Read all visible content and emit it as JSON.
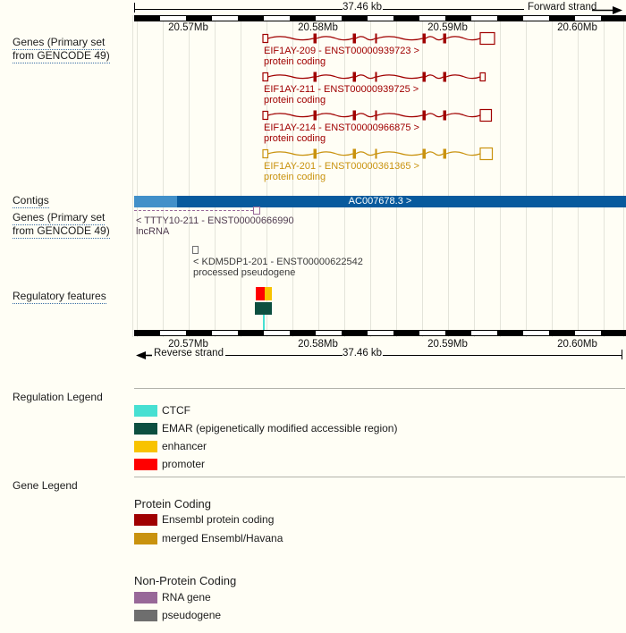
{
  "colors": {
    "background": "#fffef5",
    "grid": "#e4e4da",
    "ensembl_protein_coding": "#a00000",
    "merged_ensembl_havana": "#c9920e",
    "contig": "#085a9d",
    "contig_light": "#4290c9",
    "rna_gene": "#986898",
    "rna_gene_text": "#4f3b4f",
    "pseudogene": "#6e6e6e",
    "pseudogene_text": "#3a3a3a",
    "ctcf": "#47e0d2",
    "emar": "#0d4f40",
    "enhancer": "#f8c300",
    "promoter": "#ff0000"
  },
  "ruler_top": {
    "length_label": "37.46 kb",
    "strand_label": "Forward strand",
    "ticks": [
      "20.57Mb",
      "20.58Mb",
      "20.59Mb",
      "20.60Mb"
    ]
  },
  "ruler_bottom": {
    "length_label": "37.46 kb",
    "strand_label": "Reverse strand",
    "ticks": [
      "20.57Mb",
      "20.58Mb",
      "20.59Mb",
      "20.60Mb"
    ]
  },
  "sidebar": {
    "genes_track_line1": "Genes (Primary set",
    "genes_track_line2": "from GENCODE 49)",
    "contigs_label": "Contigs",
    "genes_track2_line1": "Genes (Primary set",
    "genes_track2_line2": "from GENCODE 49)",
    "regulatory_label": "Regulatory features"
  },
  "forward_genes": [
    {
      "name": "EIF1AY-209 - ENST00000939723 >",
      "biotype": "protein coding",
      "legend_color": "ensembl_protein_coding"
    },
    {
      "name": "EIF1AY-211 - ENST00000939725 >",
      "biotype": "protein coding",
      "legend_color": "ensembl_protein_coding"
    },
    {
      "name": "EIF1AY-214 - ENST00000966875 >",
      "biotype": "protein coding",
      "legend_color": "ensembl_protein_coding"
    },
    {
      "name": "EIF1AY-201 - ENST00000361365 >",
      "biotype": "protein coding",
      "legend_color": "merged_ensembl_havana"
    }
  ],
  "contig": {
    "name": "AC007678.3 >"
  },
  "reverse_genes": [
    {
      "name": "< TTTY10-211 - ENST00000666990",
      "biotype": "lncRNA"
    },
    {
      "name": "< KDM5DP1-201 - ENST00000622542",
      "biotype": "processed pseudogene"
    }
  ],
  "regulation_legend": {
    "title": "Regulation Legend",
    "items": [
      {
        "label": "CTCF",
        "color": "#47e0d2"
      },
      {
        "label": "EMAR (epigenetically modified accessible region)",
        "color": "#0d4f40"
      },
      {
        "label": "enhancer",
        "color": "#f8c300"
      },
      {
        "label": "promoter",
        "color": "#ff0000"
      }
    ]
  },
  "gene_legend": {
    "title": "Gene Legend",
    "groups": [
      {
        "heading": "Protein Coding",
        "items": [
          {
            "label": "Ensembl protein coding",
            "color": "#a00000"
          },
          {
            "label": "merged Ensembl/Havana",
            "color": "#c9920e"
          }
        ]
      },
      {
        "heading": "Non-Protein Coding",
        "items": [
          {
            "label": "RNA gene",
            "color": "#986898"
          },
          {
            "label": "pseudogene",
            "color": "#6e6e6e"
          }
        ]
      }
    ]
  }
}
